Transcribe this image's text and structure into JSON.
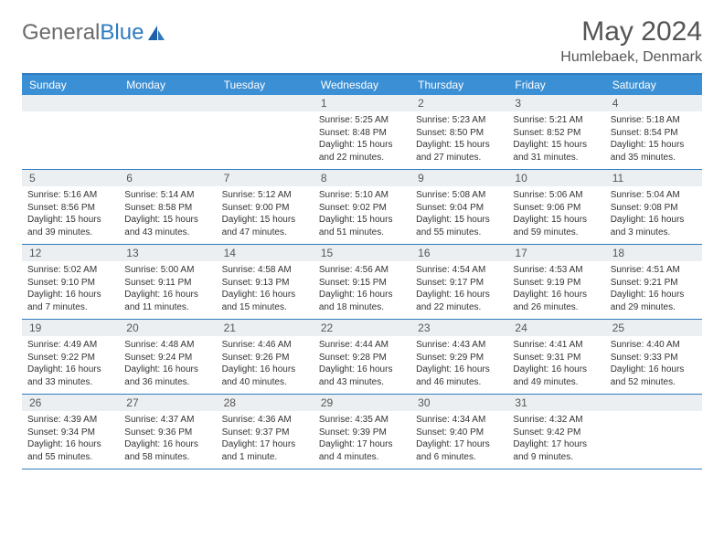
{
  "logo": {
    "word1": "General",
    "word2": "Blue"
  },
  "title": "May 2024",
  "location": "Humlebaek, Denmark",
  "colors": {
    "header_bg": "#3b8fd4",
    "border": "#2f7bbf",
    "number_bg": "#eceff1",
    "text": "#333333",
    "muted": "#555555",
    "logo_gray": "#6b6b6b",
    "logo_blue": "#2f7bbf",
    "sail": "#1d5fa8"
  },
  "weekdays": [
    "Sunday",
    "Monday",
    "Tuesday",
    "Wednesday",
    "Thursday",
    "Friday",
    "Saturday"
  ],
  "weeks": [
    [
      {
        "num": "",
        "lines": []
      },
      {
        "num": "",
        "lines": []
      },
      {
        "num": "",
        "lines": []
      },
      {
        "num": "1",
        "lines": [
          "Sunrise: 5:25 AM",
          "Sunset: 8:48 PM",
          "Daylight: 15 hours",
          "and 22 minutes."
        ]
      },
      {
        "num": "2",
        "lines": [
          "Sunrise: 5:23 AM",
          "Sunset: 8:50 PM",
          "Daylight: 15 hours",
          "and 27 minutes."
        ]
      },
      {
        "num": "3",
        "lines": [
          "Sunrise: 5:21 AM",
          "Sunset: 8:52 PM",
          "Daylight: 15 hours",
          "and 31 minutes."
        ]
      },
      {
        "num": "4",
        "lines": [
          "Sunrise: 5:18 AM",
          "Sunset: 8:54 PM",
          "Daylight: 15 hours",
          "and 35 minutes."
        ]
      }
    ],
    [
      {
        "num": "5",
        "lines": [
          "Sunrise: 5:16 AM",
          "Sunset: 8:56 PM",
          "Daylight: 15 hours",
          "and 39 minutes."
        ]
      },
      {
        "num": "6",
        "lines": [
          "Sunrise: 5:14 AM",
          "Sunset: 8:58 PM",
          "Daylight: 15 hours",
          "and 43 minutes."
        ]
      },
      {
        "num": "7",
        "lines": [
          "Sunrise: 5:12 AM",
          "Sunset: 9:00 PM",
          "Daylight: 15 hours",
          "and 47 minutes."
        ]
      },
      {
        "num": "8",
        "lines": [
          "Sunrise: 5:10 AM",
          "Sunset: 9:02 PM",
          "Daylight: 15 hours",
          "and 51 minutes."
        ]
      },
      {
        "num": "9",
        "lines": [
          "Sunrise: 5:08 AM",
          "Sunset: 9:04 PM",
          "Daylight: 15 hours",
          "and 55 minutes."
        ]
      },
      {
        "num": "10",
        "lines": [
          "Sunrise: 5:06 AM",
          "Sunset: 9:06 PM",
          "Daylight: 15 hours",
          "and 59 minutes."
        ]
      },
      {
        "num": "11",
        "lines": [
          "Sunrise: 5:04 AM",
          "Sunset: 9:08 PM",
          "Daylight: 16 hours",
          "and 3 minutes."
        ]
      }
    ],
    [
      {
        "num": "12",
        "lines": [
          "Sunrise: 5:02 AM",
          "Sunset: 9:10 PM",
          "Daylight: 16 hours",
          "and 7 minutes."
        ]
      },
      {
        "num": "13",
        "lines": [
          "Sunrise: 5:00 AM",
          "Sunset: 9:11 PM",
          "Daylight: 16 hours",
          "and 11 minutes."
        ]
      },
      {
        "num": "14",
        "lines": [
          "Sunrise: 4:58 AM",
          "Sunset: 9:13 PM",
          "Daylight: 16 hours",
          "and 15 minutes."
        ]
      },
      {
        "num": "15",
        "lines": [
          "Sunrise: 4:56 AM",
          "Sunset: 9:15 PM",
          "Daylight: 16 hours",
          "and 18 minutes."
        ]
      },
      {
        "num": "16",
        "lines": [
          "Sunrise: 4:54 AM",
          "Sunset: 9:17 PM",
          "Daylight: 16 hours",
          "and 22 minutes."
        ]
      },
      {
        "num": "17",
        "lines": [
          "Sunrise: 4:53 AM",
          "Sunset: 9:19 PM",
          "Daylight: 16 hours",
          "and 26 minutes."
        ]
      },
      {
        "num": "18",
        "lines": [
          "Sunrise: 4:51 AM",
          "Sunset: 9:21 PM",
          "Daylight: 16 hours",
          "and 29 minutes."
        ]
      }
    ],
    [
      {
        "num": "19",
        "lines": [
          "Sunrise: 4:49 AM",
          "Sunset: 9:22 PM",
          "Daylight: 16 hours",
          "and 33 minutes."
        ]
      },
      {
        "num": "20",
        "lines": [
          "Sunrise: 4:48 AM",
          "Sunset: 9:24 PM",
          "Daylight: 16 hours",
          "and 36 minutes."
        ]
      },
      {
        "num": "21",
        "lines": [
          "Sunrise: 4:46 AM",
          "Sunset: 9:26 PM",
          "Daylight: 16 hours",
          "and 40 minutes."
        ]
      },
      {
        "num": "22",
        "lines": [
          "Sunrise: 4:44 AM",
          "Sunset: 9:28 PM",
          "Daylight: 16 hours",
          "and 43 minutes."
        ]
      },
      {
        "num": "23",
        "lines": [
          "Sunrise: 4:43 AM",
          "Sunset: 9:29 PM",
          "Daylight: 16 hours",
          "and 46 minutes."
        ]
      },
      {
        "num": "24",
        "lines": [
          "Sunrise: 4:41 AM",
          "Sunset: 9:31 PM",
          "Daylight: 16 hours",
          "and 49 minutes."
        ]
      },
      {
        "num": "25",
        "lines": [
          "Sunrise: 4:40 AM",
          "Sunset: 9:33 PM",
          "Daylight: 16 hours",
          "and 52 minutes."
        ]
      }
    ],
    [
      {
        "num": "26",
        "lines": [
          "Sunrise: 4:39 AM",
          "Sunset: 9:34 PM",
          "Daylight: 16 hours",
          "and 55 minutes."
        ]
      },
      {
        "num": "27",
        "lines": [
          "Sunrise: 4:37 AM",
          "Sunset: 9:36 PM",
          "Daylight: 16 hours",
          "and 58 minutes."
        ]
      },
      {
        "num": "28",
        "lines": [
          "Sunrise: 4:36 AM",
          "Sunset: 9:37 PM",
          "Daylight: 17 hours",
          "and 1 minute."
        ]
      },
      {
        "num": "29",
        "lines": [
          "Sunrise: 4:35 AM",
          "Sunset: 9:39 PM",
          "Daylight: 17 hours",
          "and 4 minutes."
        ]
      },
      {
        "num": "30",
        "lines": [
          "Sunrise: 4:34 AM",
          "Sunset: 9:40 PM",
          "Daylight: 17 hours",
          "and 6 minutes."
        ]
      },
      {
        "num": "31",
        "lines": [
          "Sunrise: 4:32 AM",
          "Sunset: 9:42 PM",
          "Daylight: 17 hours",
          "and 9 minutes."
        ]
      },
      {
        "num": "",
        "lines": []
      }
    ]
  ]
}
